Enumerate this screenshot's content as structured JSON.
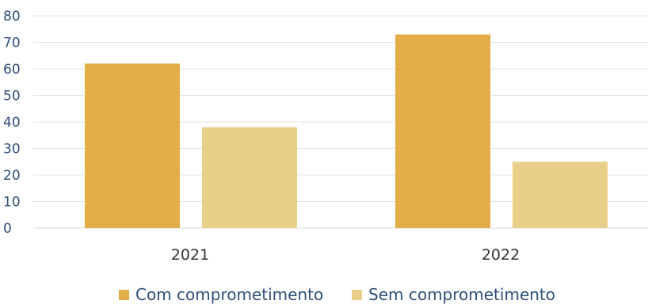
{
  "chart_data": {
    "type": "bar",
    "title": "",
    "xlabel": "",
    "ylabel": "",
    "ylim": [
      0,
      80
    ],
    "yticks": [
      0,
      10,
      20,
      30,
      40,
      50,
      60,
      70,
      80
    ],
    "ytick_labels": [
      "0",
      "10",
      "20",
      "30",
      "40",
      "50",
      "60",
      "70",
      "80"
    ],
    "categories": [
      "2021",
      "2022"
    ],
    "series": [
      {
        "name": "Com comprometimento",
        "values": [
          62,
          73
        ]
      },
      {
        "name": "Sem comprometimento",
        "values": [
          38,
          25
        ]
      }
    ],
    "grid": true,
    "legend": "bottom"
  },
  "colors": {
    "series": [
      "#E2AE47",
      "#E8CF8A"
    ],
    "axis_text": "#2F4F78",
    "category_text": "#333333",
    "legend_text": "#2F4F78",
    "gridline": "#E4E4E4"
  }
}
